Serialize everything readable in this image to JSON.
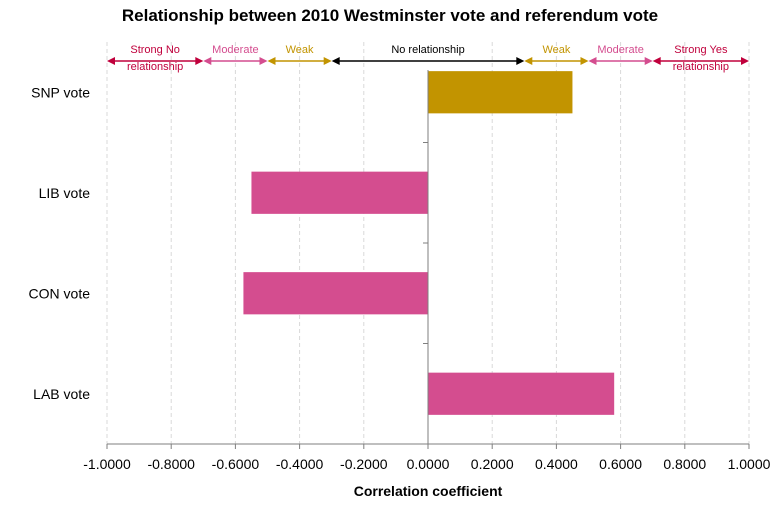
{
  "chart_data": {
    "type": "bar",
    "orientation": "horizontal",
    "title": "Relationship between 2010 Westminster vote and referendum vote",
    "xlabel": "Correlation coefficient",
    "ylabel": "",
    "xlim": [
      -1.0,
      1.0
    ],
    "x_ticks": [
      "-1.0000",
      "-0.8000",
      "-0.6000",
      "-0.4000",
      "-0.2000",
      "0.0000",
      "0.2000",
      "0.4000",
      "0.6000",
      "0.8000",
      "1.0000"
    ],
    "grid": "vertical dashed",
    "categories": [
      "SNP vote",
      "LIB vote",
      "CON vote",
      "LAB vote"
    ],
    "values": [
      0.45,
      -0.55,
      -0.575,
      0.58
    ],
    "bar_colors": [
      "#c29400",
      "#d44d8f",
      "#d44d8f",
      "#d44d8f"
    ],
    "annotations": [
      {
        "label": "Strong No relationship",
        "lines": [
          "Strong No",
          "relationship"
        ],
        "from": -1.0,
        "to": -0.7,
        "color": "#c0003c"
      },
      {
        "label": "Moderate",
        "lines": [
          "Moderate"
        ],
        "from": -0.7,
        "to": -0.5,
        "color": "#d44d8f"
      },
      {
        "label": "Weak",
        "lines": [
          "Weak"
        ],
        "from": -0.5,
        "to": -0.3,
        "color": "#c29400"
      },
      {
        "label": "No relationship",
        "lines": [
          "No relationship"
        ],
        "from": -0.3,
        "to": 0.3,
        "color": "#000000"
      },
      {
        "label": "Weak",
        "lines": [
          "Weak"
        ],
        "from": 0.3,
        "to": 0.5,
        "color": "#c29400"
      },
      {
        "label": "Moderate",
        "lines": [
          "Moderate"
        ],
        "from": 0.5,
        "to": 0.7,
        "color": "#d44d8f"
      },
      {
        "label": "Strong Yes relationship",
        "lines": [
          "Strong Yes",
          "relationship"
        ],
        "from": 0.7,
        "to": 1.0,
        "color": "#c0003c"
      }
    ]
  }
}
